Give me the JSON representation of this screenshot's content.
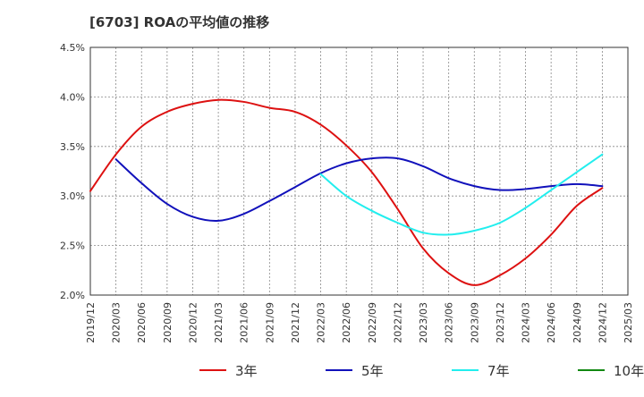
{
  "chart_data": {
    "type": "line",
    "title": "[6703]  ROAの平均値の推移",
    "xlabel": "",
    "ylabel": "",
    "y_ticks": [
      "4.5%",
      "4.0%",
      "3.5%",
      "3.0%",
      "2.5%",
      "2.0%"
    ],
    "ylim": [
      2.0,
      4.5
    ],
    "x_ticks": [
      "2019/12",
      "2020/03",
      "2020/06",
      "2020/09",
      "2020/12",
      "2021/03",
      "2021/06",
      "2021/09",
      "2021/12",
      "2022/03",
      "2022/06",
      "2022/09",
      "2022/12",
      "2023/03",
      "2023/06",
      "2023/09",
      "2023/12",
      "2024/03",
      "2024/06",
      "2024/09",
      "2024/12",
      "2025/03"
    ],
    "grid": true,
    "legend_position": "bottom",
    "series": [
      {
        "name": "3年",
        "color": "#dd1111",
        "points": [
          [
            "2019/12",
            3.05
          ],
          [
            "2020/03",
            3.42
          ],
          [
            "2020/06",
            3.7
          ],
          [
            "2020/09",
            3.85
          ],
          [
            "2020/12",
            3.93
          ],
          [
            "2021/03",
            3.97
          ],
          [
            "2021/06",
            3.95
          ],
          [
            "2021/09",
            3.89
          ],
          [
            "2021/12",
            3.85
          ],
          [
            "2022/03",
            3.72
          ],
          [
            "2022/06",
            3.51
          ],
          [
            "2022/09",
            3.24
          ],
          [
            "2022/12",
            2.87
          ],
          [
            "2023/03",
            2.47
          ],
          [
            "2023/06",
            2.22
          ],
          [
            "2023/09",
            2.1
          ],
          [
            "2023/12",
            2.2
          ],
          [
            "2024/03",
            2.37
          ],
          [
            "2024/06",
            2.61
          ],
          [
            "2024/09",
            2.9
          ],
          [
            "2024/12",
            3.08
          ]
        ]
      },
      {
        "name": "5年",
        "color": "#1111bb",
        "points": [
          [
            "2020/03",
            3.37
          ],
          [
            "2020/06",
            3.13
          ],
          [
            "2020/09",
            2.92
          ],
          [
            "2020/12",
            2.79
          ],
          [
            "2021/03",
            2.75
          ],
          [
            "2021/06",
            2.82
          ],
          [
            "2021/09",
            2.95
          ],
          [
            "2021/12",
            3.09
          ],
          [
            "2022/03",
            3.23
          ],
          [
            "2022/06",
            3.33
          ],
          [
            "2022/09",
            3.38
          ],
          [
            "2022/12",
            3.38
          ],
          [
            "2023/03",
            3.3
          ],
          [
            "2023/06",
            3.18
          ],
          [
            "2023/09",
            3.1
          ],
          [
            "2023/12",
            3.06
          ],
          [
            "2024/03",
            3.07
          ],
          [
            "2024/06",
            3.1
          ],
          [
            "2024/09",
            3.12
          ],
          [
            "2024/12",
            3.1
          ]
        ]
      },
      {
        "name": "7年",
        "color": "#22eeee",
        "points": [
          [
            "2022/03",
            3.22
          ],
          [
            "2022/06",
            3.0
          ],
          [
            "2022/09",
            2.85
          ],
          [
            "2022/12",
            2.73
          ],
          [
            "2023/03",
            2.63
          ],
          [
            "2023/06",
            2.61
          ],
          [
            "2023/09",
            2.65
          ],
          [
            "2023/12",
            2.73
          ],
          [
            "2024/03",
            2.88
          ],
          [
            "2024/06",
            3.06
          ],
          [
            "2024/09",
            3.24
          ],
          [
            "2024/12",
            3.42
          ]
        ]
      },
      {
        "name": "10年",
        "color": "#118811",
        "points": []
      }
    ]
  }
}
